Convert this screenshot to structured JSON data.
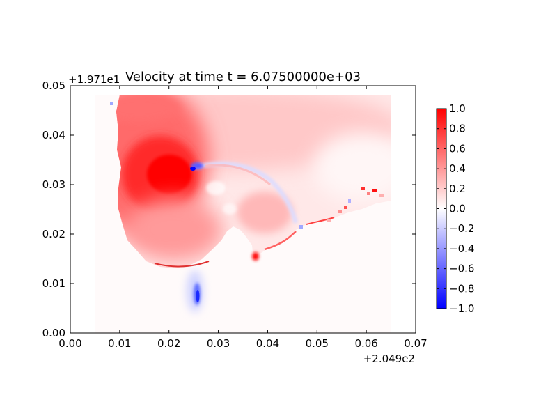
{
  "chart_data": {
    "type": "heatmap",
    "title": "Velocity at time t = 6.07500000e+03",
    "xlabel": "",
    "ylabel": "",
    "x_offset_label": "+2.049e2",
    "y_offset_label": "+1.971e1",
    "xlim": [
      0.0,
      0.07
    ],
    "ylim": [
      0.0,
      0.05
    ],
    "x_ticks": [
      "0.00",
      "0.01",
      "0.02",
      "0.03",
      "0.04",
      "0.05",
      "0.06",
      "0.07"
    ],
    "y_ticks": [
      "0.00",
      "0.01",
      "0.02",
      "0.03",
      "0.04",
      "0.05"
    ],
    "colorbar": {
      "vmin": -1.0,
      "vmax": 1.0,
      "ticks": [
        "−1.0",
        "−0.8",
        "−0.6",
        "−0.4",
        "−0.2",
        "0.0",
        "0.2",
        "0.4",
        "0.6",
        "0.8",
        "1.0"
      ],
      "colormap": "bwr",
      "low_color": "#0000ff",
      "mid_color": "#ffffff",
      "high_color": "#ff0000"
    },
    "field_extent": {
      "x": [
        0.005,
        0.065
      ],
      "y": [
        0.0,
        0.048
      ]
    },
    "features": [
      {
        "kind": "velocity_max",
        "x": 0.022,
        "y": 0.032,
        "value": 1.0
      },
      {
        "kind": "velocity_high",
        "x": 0.014,
        "y": 0.036,
        "value": 0.95
      },
      {
        "kind": "velocity_negative",
        "x": 0.0265,
        "y": 0.0078,
        "value": -0.9
      },
      {
        "kind": "velocity_negative",
        "x": 0.025,
        "y": 0.0335,
        "value": -0.7
      },
      {
        "kind": "velocity_high",
        "x": 0.0375,
        "y": 0.0155,
        "value": 0.9
      },
      {
        "kind": "velocity_high",
        "x": 0.0605,
        "y": 0.0288,
        "value": 0.95
      }
    ]
  }
}
